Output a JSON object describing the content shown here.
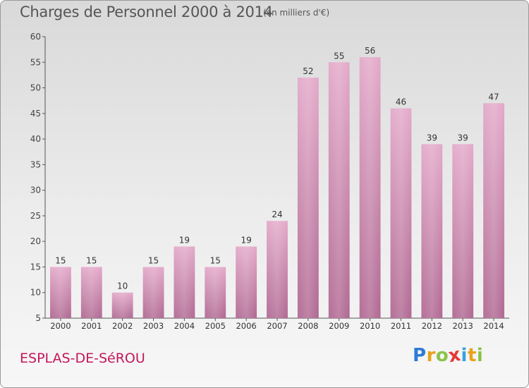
{
  "header": {
    "title": "Charges de Personnel 2000 à 2014",
    "unit": "(en milliers d'€)"
  },
  "footer": {
    "commune": "ESPLAS-DE-SéROU",
    "logo_letters": [
      "P",
      "r",
      "o",
      "x",
      "i",
      "t",
      "i"
    ],
    "logo_colors": [
      "#2e7bd6",
      "#e8a21a",
      "#8bc34a",
      "#e53935",
      "#3aa0dc",
      "#e8a21a",
      "#8bc34a"
    ]
  },
  "chart_data": {
    "type": "bar",
    "categories": [
      "2000",
      "2001",
      "2002",
      "2003",
      "2004",
      "2005",
      "2006",
      "2007",
      "2008",
      "2009",
      "2010",
      "2011",
      "2012",
      "2013",
      "2014"
    ],
    "values": [
      15,
      15,
      10,
      15,
      19,
      15,
      19,
      24,
      52,
      55,
      56,
      46,
      39,
      39,
      47
    ],
    "ylim": [
      5,
      60
    ],
    "yticks": [
      5,
      10,
      15,
      20,
      25,
      30,
      35,
      40,
      45,
      50,
      55,
      60
    ],
    "grid": false,
    "bar_color": "#d98cb5"
  }
}
